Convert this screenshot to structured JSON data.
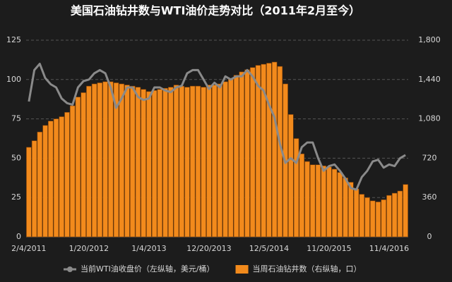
{
  "chart_data": {
    "type": "combo",
    "title": "美国石油钻井数与WTI油价走势对比（2011年2月至今）",
    "categories": [
      "2/4/2011",
      null,
      null,
      null,
      null,
      null,
      null,
      null,
      null,
      null,
      null,
      "1/20/2012",
      null,
      null,
      null,
      null,
      null,
      null,
      null,
      null,
      null,
      null,
      "1/4/2013",
      null,
      null,
      null,
      null,
      null,
      null,
      null,
      null,
      null,
      null,
      "12/20/2013",
      null,
      null,
      null,
      null,
      null,
      null,
      null,
      null,
      null,
      null,
      "12/5/2014",
      null,
      null,
      null,
      null,
      null,
      null,
      null,
      null,
      null,
      null,
      "11/20/2015",
      null,
      null,
      null,
      null,
      null,
      null,
      null,
      null,
      null,
      null,
      "11/4/2016",
      null,
      null,
      null
    ],
    "series": [
      {
        "name": "当周石油钻井数（右纵轴，口）",
        "type": "bar",
        "axis": "y2",
        "color": "#f28a1c",
        "values": [
          820,
          880,
          960,
          1020,
          1060,
          1080,
          1100,
          1140,
          1200,
          1280,
          1320,
          1380,
          1400,
          1410,
          1420,
          1420,
          1410,
          1400,
          1390,
          1380,
          1370,
          1350,
          1330,
          1340,
          1350,
          1360,
          1370,
          1390,
          1380,
          1370,
          1380,
          1380,
          1370,
          1390,
          1390,
          1400,
          1420,
          1450,
          1480,
          1510,
          1530,
          1550,
          1570,
          1580,
          1590,
          1600,
          1560,
          1400,
          1120,
          900,
          760,
          690,
          660,
          660,
          650,
          640,
          620,
          590,
          540,
          500,
          440,
          390,
          360,
          330,
          320,
          340,
          380,
          400,
          420,
          480
        ]
      },
      {
        "name": "当前WTI油收盘价（左纵轴，美元/桶）",
        "type": "line",
        "color": "#8a8a8a",
        "values": [
          86,
          106,
          110,
          101,
          97,
          95,
          88,
          85,
          84,
          95,
          99,
          100,
          104,
          106,
          104,
          95,
          82,
          88,
          95,
          95,
          89,
          87,
          88,
          95,
          95,
          93,
          92,
          95,
          96,
          104,
          106,
          106,
          100,
          94,
          98,
          95,
          102,
          100,
          102,
          102,
          106,
          102,
          96,
          93,
          84,
          76,
          59,
          47,
          50,
          47,
          57,
          60,
          60,
          50,
          42,
          45,
          46,
          42,
          37,
          31,
          30,
          38,
          42,
          48,
          49,
          44,
          46,
          45,
          50,
          52
        ]
      }
    ],
    "ylim": [
      0,
      125
    ],
    "yticks": [
      0,
      25,
      50,
      75,
      100,
      125
    ],
    "y2lim": [
      0,
      1800
    ],
    "y2ticks": [
      0,
      360,
      720,
      {
        "value": 1080,
        "label": "1,080"
      },
      {
        "value": 1440,
        "label": "1,440"
      },
      {
        "value": 1800,
        "label": "1,800"
      }
    ],
    "grid": true
  }
}
